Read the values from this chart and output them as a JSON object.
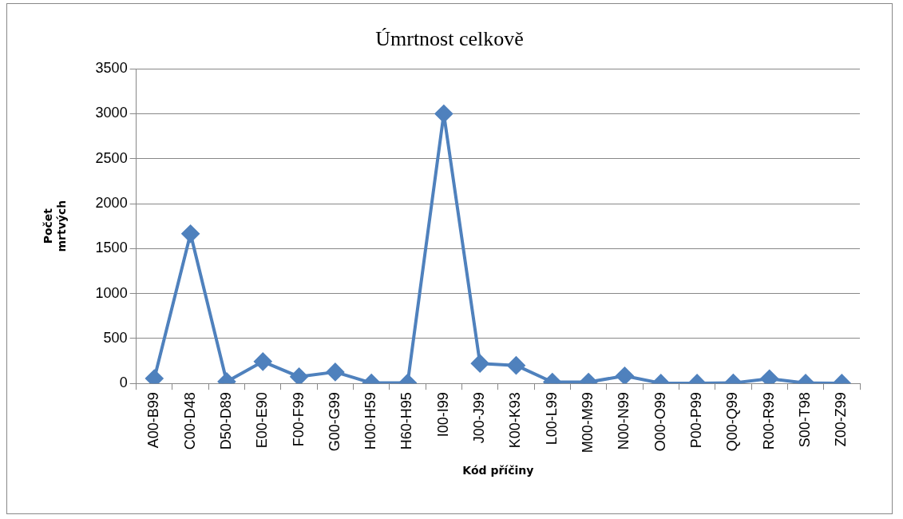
{
  "chart_data": {
    "type": "line",
    "title": "Úmrtnost celkově",
    "xlabel": "Kód příčiny",
    "ylabel": "Počet\nmrtvých",
    "categories": [
      "A00-B99",
      "C00-D48",
      "D50-D89",
      "E00-E90",
      "F00-F99",
      "G00-G99",
      "H00-H59",
      "H60-H95",
      "I00-I99",
      "J00-J99",
      "K00-K93",
      "L00-L99",
      "M00-M99",
      "N00-N99",
      "O00-O99",
      "P00-P99",
      "Q00-Q99",
      "R00-R99",
      "S00-T98",
      "Z00-Z99"
    ],
    "series": [
      {
        "color": "#4f81bd",
        "values": [
          55,
          1665,
          20,
          243,
          74,
          127,
          5,
          5,
          3000,
          222,
          200,
          15,
          15,
          84,
          2,
          2,
          5,
          53,
          3,
          2
        ]
      }
    ],
    "ylim": [
      0,
      3500
    ],
    "yticks": [
      0,
      500,
      1000,
      1500,
      2000,
      2500,
      3000,
      3500
    ],
    "grid": "y",
    "legend": false,
    "marker": "diamond",
    "line_style": "solid"
  }
}
